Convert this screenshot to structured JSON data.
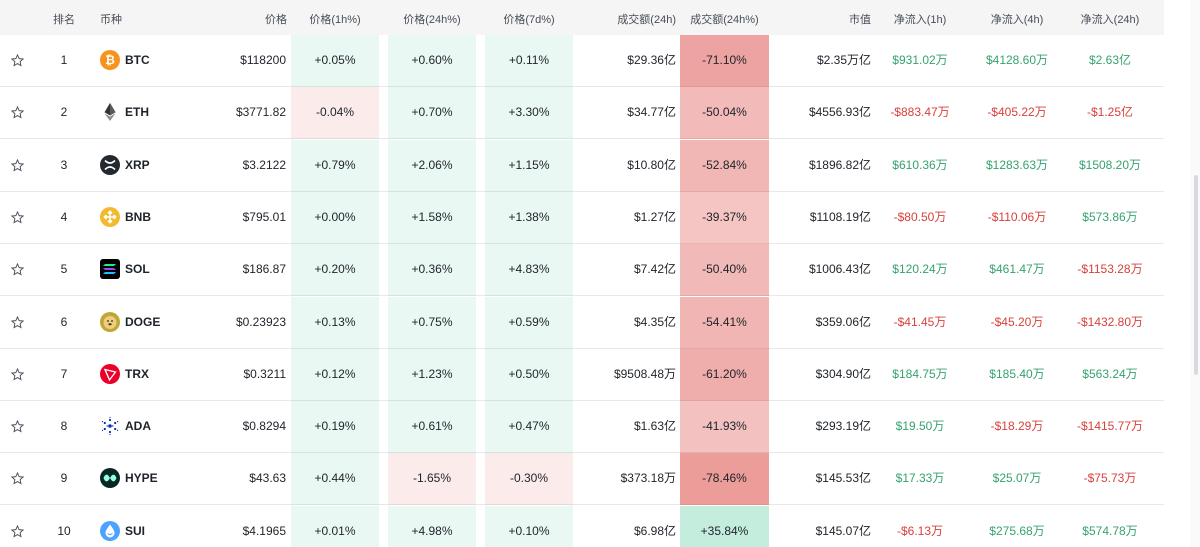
{
  "header": {
    "rank": "排名",
    "coin": "币种",
    "price": "价格",
    "price_1h": "价格(1h%)",
    "price_24h": "价格(24h%)",
    "price_7d": "价格(7d%)",
    "volume_24h": "成交额(24h)",
    "volume_change_24h": "成交额(24h%)",
    "market_cap": "市值",
    "inflow_1h": "净流入(1h)",
    "inflow_4h": "净流入(4h)",
    "inflow_24h": "净流入(24h)"
  },
  "rows": [
    {
      "rank": "1",
      "symbol": "BTC",
      "icon": "bitcoin-icon",
      "price": "$118200",
      "p1h": "+0.05%",
      "p24h": "+0.60%",
      "p7d": "+0.11%",
      "vol": "$29.36亿",
      "volchg": "-71.10%",
      "mcap": "$2.35万亿",
      "in1h": "$931.02万",
      "in4h": "$4128.60万",
      "in24h": "$2.63亿"
    },
    {
      "rank": "2",
      "symbol": "ETH",
      "icon": "ethereum-icon",
      "price": "$3771.82",
      "p1h": "-0.04%",
      "p24h": "+0.70%",
      "p7d": "+3.30%",
      "vol": "$34.77亿",
      "volchg": "-50.04%",
      "mcap": "$4556.93亿",
      "in1h": "-$883.47万",
      "in4h": "-$405.22万",
      "in24h": "-$1.25亿"
    },
    {
      "rank": "3",
      "symbol": "XRP",
      "icon": "xrp-icon",
      "price": "$3.2122",
      "p1h": "+0.79%",
      "p24h": "+2.06%",
      "p7d": "+1.15%",
      "vol": "$10.80亿",
      "volchg": "-52.84%",
      "mcap": "$1896.82亿",
      "in1h": "$610.36万",
      "in4h": "$1283.63万",
      "in24h": "$1508.20万"
    },
    {
      "rank": "4",
      "symbol": "BNB",
      "icon": "bnb-icon",
      "price": "$795.01",
      "p1h": "+0.00%",
      "p24h": "+1.58%",
      "p7d": "+1.38%",
      "vol": "$1.27亿",
      "volchg": "-39.37%",
      "mcap": "$1108.19亿",
      "in1h": "-$80.50万",
      "in4h": "-$110.06万",
      "in24h": "$573.86万"
    },
    {
      "rank": "5",
      "symbol": "SOL",
      "icon": "solana-icon",
      "price": "$186.87",
      "p1h": "+0.20%",
      "p24h": "+0.36%",
      "p7d": "+4.83%",
      "vol": "$7.42亿",
      "volchg": "-50.40%",
      "mcap": "$1006.43亿",
      "in1h": "$120.24万",
      "in4h": "$461.47万",
      "in24h": "-$1153.28万"
    },
    {
      "rank": "6",
      "symbol": "DOGE",
      "icon": "dogecoin-icon",
      "price": "$0.23923",
      "p1h": "+0.13%",
      "p24h": "+0.75%",
      "p7d": "+0.59%",
      "vol": "$4.35亿",
      "volchg": "-54.41%",
      "mcap": "$359.06亿",
      "in1h": "-$41.45万",
      "in4h": "-$45.20万",
      "in24h": "-$1432.80万"
    },
    {
      "rank": "7",
      "symbol": "TRX",
      "icon": "tron-icon",
      "price": "$0.3211",
      "p1h": "+0.12%",
      "p24h": "+1.23%",
      "p7d": "+0.50%",
      "vol": "$9508.48万",
      "volchg": "-61.20%",
      "mcap": "$304.90亿",
      "in1h": "$184.75万",
      "in4h": "$185.40万",
      "in24h": "$563.24万"
    },
    {
      "rank": "8",
      "symbol": "ADA",
      "icon": "cardano-icon",
      "price": "$0.8294",
      "p1h": "+0.19%",
      "p24h": "+0.61%",
      "p7d": "+0.47%",
      "vol": "$1.63亿",
      "volchg": "-41.93%",
      "mcap": "$293.19亿",
      "in1h": "$19.50万",
      "in4h": "-$18.29万",
      "in24h": "-$1415.77万"
    },
    {
      "rank": "9",
      "symbol": "HYPE",
      "icon": "hyperliquid-icon",
      "price": "$43.63",
      "p1h": "+0.44%",
      "p24h": "-1.65%",
      "p7d": "-0.30%",
      "vol": "$373.18万",
      "volchg": "-78.46%",
      "mcap": "$145.53亿",
      "in1h": "$17.33万",
      "in4h": "$25.07万",
      "in24h": "-$75.73万"
    },
    {
      "rank": "10",
      "symbol": "SUI",
      "icon": "sui-icon",
      "price": "$4.1965",
      "p1h": "+0.01%",
      "p24h": "+4.98%",
      "p7d": "+0.10%",
      "vol": "$6.98亿",
      "volchg": "+35.84%",
      "mcap": "$145.07亿",
      "in1h": "-$6.13万",
      "in4h": "$275.68万",
      "in24h": "$574.78万"
    }
  ]
}
